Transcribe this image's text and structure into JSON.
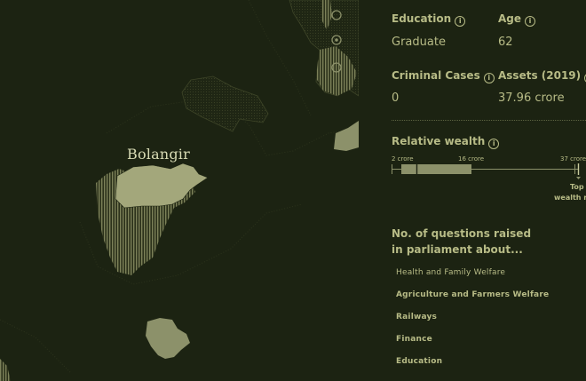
{
  "map": {
    "highlight_label": "Bolangir",
    "colors": {
      "background": "#1c2312",
      "region": "#8c916a",
      "selected": "#a3a77b"
    }
  },
  "profile": {
    "education_label": "Education",
    "education_value": "Graduate",
    "age_label": "Age",
    "age_value": "62",
    "criminal_label": "Criminal Cases",
    "criminal_value": "0",
    "assets_label": "Assets (2019)",
    "assets_value": "37.96 crore"
  },
  "wealth": {
    "label": "Relative wealth",
    "scale_min": "2 crore",
    "scale_mid": "16 crore",
    "scale_max": "37 crore",
    "marker_label_1": "Top",
    "marker_label_2": "wealth r"
  },
  "questions": {
    "heading_line1": "No. of questions raised",
    "heading_line2": "in parliament about...",
    "topics": [
      "Health and Family Welfare",
      "Agriculture and Farmers Welfare",
      "Railways",
      "Finance",
      "Education"
    ]
  }
}
